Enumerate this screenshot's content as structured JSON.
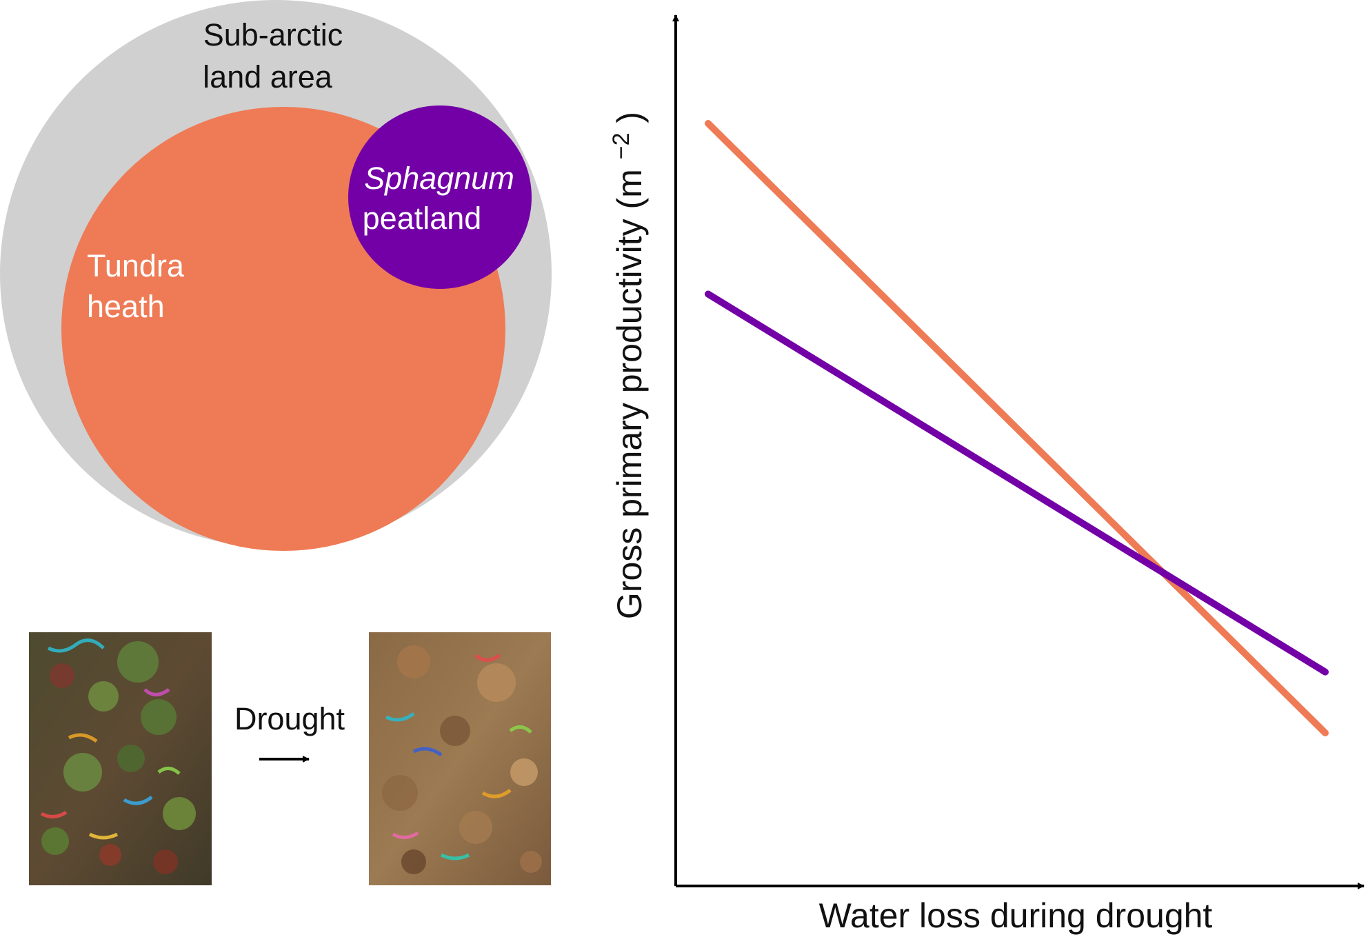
{
  "venn": {
    "outer_label_line1": "Sub-arctic",
    "outer_label_line2": "land area",
    "tundra_label_line1": "Tundra",
    "tundra_label_line2": "heath",
    "sphagnum_label_line1": "Sphagnum",
    "sphagnum_label_line2": "peatland",
    "colors": {
      "land_area": "#d0d0d0",
      "tundra": "#ee7b55",
      "sphagnum": "#7300a6"
    }
  },
  "photos": {
    "arrow_label": "Drought",
    "before_description_icon": "vegetation-photo-before",
    "after_description_icon": "vegetation-photo-after"
  },
  "chart_data": {
    "type": "line",
    "xlabel": "Water loss during drought",
    "ylabel_main": "Gross primary productivity",
    "ylabel_unit_base": "(m",
    "ylabel_unit_exp": "−2",
    "ylabel_unit_close": ")",
    "x_ticks": "none",
    "y_ticks": "none",
    "grid": false,
    "series": [
      {
        "color": "#ee7b55",
        "points": [
          [
            0.0,
            1.0
          ],
          [
            1.0,
            0.0
          ]
        ]
      },
      {
        "color": "#7300a6",
        "points": [
          [
            0.0,
            0.72
          ],
          [
            1.0,
            0.1
          ]
        ]
      }
    ]
  }
}
